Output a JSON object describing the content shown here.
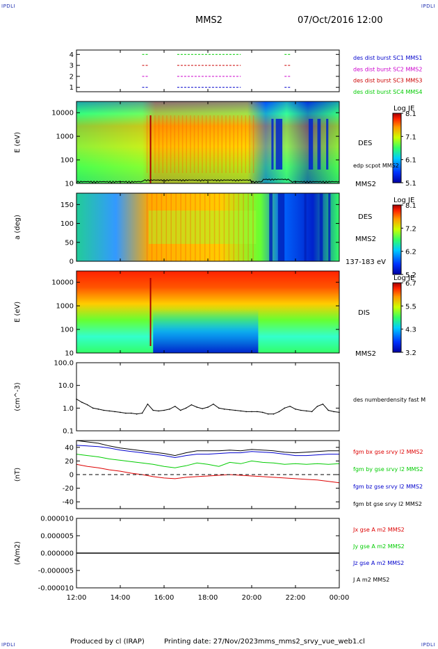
{
  "corners": {
    "tl": "IPDLI",
    "tr": "IPDLI",
    "bl": "IPDLI",
    "br": "IPDLI"
  },
  "header": {
    "spacecraft": "MMS2",
    "datetime": "07/Oct/2016 12:00"
  },
  "footer": {
    "produced_by": "Produced by cl (IRAP)",
    "printing_date": "Printing date: 27/Nov/2023",
    "file": "mms_mms2_srvy_vue_web1.cl"
  },
  "time_axis": {
    "ticks": [
      "12:00",
      "14:00",
      "16:00",
      "18:00",
      "20:00",
      "22:00",
      "00:00"
    ]
  },
  "colors": {
    "mms1": "#0000cc",
    "mms2": "#cc00cc",
    "mms3": "#cc0000",
    "mms4": "#00cc00",
    "bx": "#dd0000",
    "by": "#00cc00",
    "bz": "#0000cc",
    "bt": "#000000"
  },
  "chart_data": [
    {
      "type": "scatter",
      "panel": "burst",
      "yticks": [
        "1",
        "2",
        "3",
        "4"
      ],
      "series": [
        {
          "name": "des dist burst SC1 MMS1",
          "y": 1,
          "intervals": [
            [
              15.0,
              15.3
            ],
            [
              16.6,
              19.5
            ],
            [
              21.5,
              21.8
            ]
          ]
        },
        {
          "name": "des dist burst SC2 MMS2",
          "y": 2,
          "intervals": [
            [
              15.0,
              15.3
            ],
            [
              16.6,
              19.5
            ],
            [
              21.5,
              21.8
            ]
          ]
        },
        {
          "name": "des dist burst SC3 MMS3",
          "y": 3,
          "intervals": [
            [
              15.0,
              15.3
            ],
            [
              16.6,
              19.5
            ],
            [
              21.5,
              21.8
            ]
          ]
        },
        {
          "name": "des dist burst SC4 MMS4",
          "y": 4,
          "intervals": [
            [
              15.0,
              15.3
            ],
            [
              16.6,
              19.5
            ],
            [
              21.5,
              21.8
            ]
          ]
        }
      ]
    },
    {
      "type": "heatmap",
      "panel": "des-energy",
      "ylabel": "E (eV)",
      "yscale": "log",
      "ylim": [
        10,
        30000
      ],
      "yticks": [
        "10",
        "100",
        "1000",
        "10000"
      ],
      "instrument": "DES",
      "spacecraft": "MMS2",
      "overlay_label": "edp scpot MMS2",
      "colorbar": {
        "title": "Log JE",
        "ticks": [
          "8.1",
          "7.1",
          "6.1",
          "5.1"
        ],
        "range": [
          5.1,
          8.1
        ]
      }
    },
    {
      "type": "heatmap",
      "panel": "des-pitch",
      "ylabel": "a (deg)",
      "ylim": [
        0,
        180
      ],
      "yticks": [
        "0",
        "50",
        "100",
        "150"
      ],
      "instrument": "DES",
      "spacecraft": "MMS2",
      "energy_range": "137-183 eV",
      "colorbar": {
        "title": "Log JE",
        "ticks": [
          "8.1",
          "7.2",
          "6.2",
          "5.2"
        ],
        "range": [
          5.2,
          8.1
        ]
      }
    },
    {
      "type": "heatmap",
      "panel": "dis-energy",
      "ylabel": "E (eV)",
      "yscale": "log",
      "ylim": [
        10,
        30000
      ],
      "yticks": [
        "10",
        "100",
        "1000",
        "10000"
      ],
      "instrument": "DIS",
      "spacecraft": "MMS2",
      "colorbar": {
        "title": "Log JE",
        "ticks": [
          "6.7",
          "5.5",
          "4.3",
          "3.2"
        ],
        "range": [
          3.2,
          6.7
        ]
      }
    },
    {
      "type": "line",
      "panel": "density",
      "ylabel": "(cm^-3)",
      "yscale": "log",
      "ylim": [
        0.1,
        100
      ],
      "yticks": [
        "0.1",
        "1.0",
        "10.0",
        "100.0"
      ],
      "series": [
        {
          "name": "des numberdensity fast M",
          "x": [
            12.0,
            12.25,
            12.5,
            12.75,
            13.0,
            13.25,
            13.5,
            13.75,
            14.0,
            14.25,
            14.5,
            14.75,
            15.0,
            15.25,
            15.5,
            15.75,
            16.0,
            16.25,
            16.5,
            16.75,
            17.0,
            17.25,
            17.5,
            17.75,
            18.0,
            18.25,
            18.5,
            18.75,
            19.0,
            19.25,
            19.5,
            19.75,
            20.0,
            20.25,
            20.5,
            20.75,
            21.0,
            21.25,
            21.5,
            21.75,
            22.0,
            22.25,
            22.5,
            22.75,
            23.0,
            23.25,
            23.5,
            23.75,
            24.0
          ],
          "y": [
            2.5,
            1.8,
            1.4,
            1.0,
            0.9,
            0.8,
            0.75,
            0.7,
            0.65,
            0.6,
            0.6,
            0.55,
            0.6,
            1.5,
            0.8,
            0.75,
            0.8,
            0.9,
            1.2,
            0.8,
            1.0,
            1.4,
            1.1,
            0.95,
            1.1,
            1.5,
            1.0,
            0.9,
            0.85,
            0.8,
            0.75,
            0.7,
            0.7,
            0.7,
            0.65,
            0.55,
            0.55,
            0.7,
            1.0,
            1.2,
            0.9,
            0.8,
            0.75,
            0.7,
            1.2,
            1.5,
            0.8,
            0.7,
            0.65
          ]
        }
      ]
    },
    {
      "type": "line",
      "panel": "bfield",
      "ylabel": "(nT)",
      "ylim": [
        -50,
        50
      ],
      "yticks": [
        "-40",
        "-20",
        "0",
        "20",
        "40"
      ],
      "x": [
        12.0,
        12.5,
        13.0,
        13.5,
        14.0,
        14.5,
        15.0,
        15.5,
        16.0,
        16.5,
        17.0,
        17.5,
        18.0,
        18.5,
        19.0,
        19.5,
        20.0,
        20.5,
        21.0,
        21.5,
        22.0,
        22.5,
        23.0,
        23.5,
        24.0
      ],
      "series": [
        {
          "name": "fgm bx gse srvy l2 MMS2",
          "values": [
            15,
            12,
            10,
            7,
            5,
            2,
            0,
            -3,
            -5,
            -6,
            -4,
            -3,
            -2,
            -1,
            0,
            -1,
            -2,
            -3,
            -4,
            -5,
            -6,
            -7,
            -8,
            -10,
            -12
          ]
        },
        {
          "name": "fgm by gse srvy l2 MMS2",
          "values": [
            30,
            28,
            26,
            23,
            21,
            19,
            17,
            15,
            12,
            10,
            13,
            17,
            15,
            12,
            18,
            16,
            20,
            18,
            17,
            15,
            16,
            15,
            16,
            15,
            16
          ]
        },
        {
          "name": "fgm bz gse srvy l2 MMS2",
          "values": [
            43,
            42,
            41,
            39,
            36,
            34,
            32,
            30,
            28,
            25,
            28,
            30,
            30,
            31,
            32,
            32,
            34,
            33,
            32,
            30,
            28,
            28,
            29,
            30,
            30
          ]
        },
        {
          "name": "fgm bt gse srvy l2 MMS2",
          "values": [
            50,
            48,
            46,
            42,
            39,
            37,
            35,
            33,
            31,
            28,
            32,
            35,
            35,
            35,
            36,
            35,
            37,
            36,
            35,
            33,
            32,
            33,
            34,
            35,
            35
          ]
        }
      ]
    },
    {
      "type": "line",
      "panel": "current",
      "ylabel": "(A/m2)",
      "ylim": [
        -1e-05,
        1e-05
      ],
      "yticks": [
        "0.000010",
        "0.000005",
        "0.000000",
        "-0.000005",
        "-0.000010"
      ],
      "series": [
        {
          "name": "Jx gse A m2 MMS2",
          "values": [
            0,
            0
          ]
        },
        {
          "name": "Jy gse A m2 MMS2",
          "values": [
            0,
            0
          ]
        },
        {
          "name": "Jz gse A m2 MMS2",
          "values": [
            0,
            0
          ]
        },
        {
          "name": "J A m2 MMS2",
          "values": [
            0,
            0
          ]
        }
      ],
      "x": [
        12.0,
        24.0
      ]
    }
  ]
}
